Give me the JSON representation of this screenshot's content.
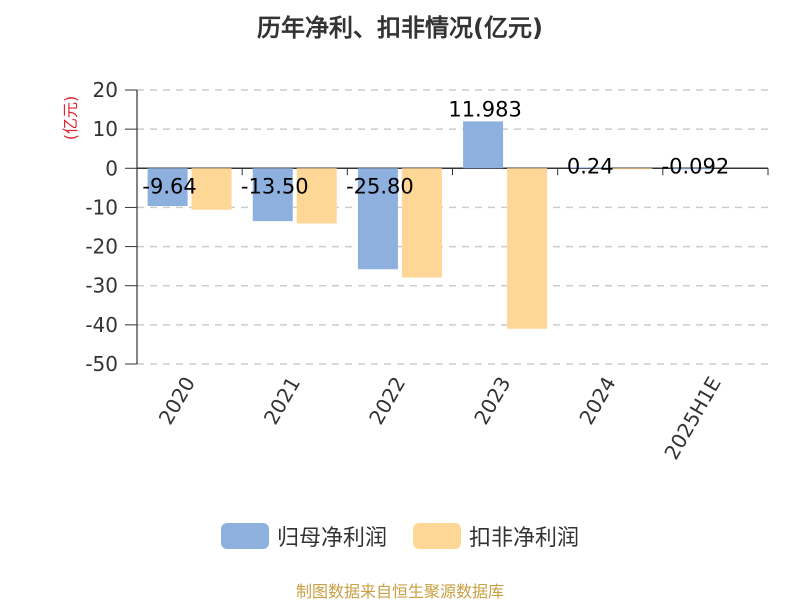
{
  "chart_data": {
    "type": "bar",
    "title": "历年净利、扣非情况(亿元)",
    "ylabel": "(亿元)",
    "categories": [
      "2020",
      "2021",
      "2022",
      "2023",
      "2024",
      "2025H1E"
    ],
    "series": [
      {
        "name": "归母净利润",
        "color": "#8eb0de",
        "values": [
          -9.64,
          -13.5,
          -25.8,
          11.983,
          0.24,
          -0.092
        ],
        "labels": [
          "-9.64",
          "-13.50",
          "-25.80",
          "11.983",
          "0.24",
          "-0.092"
        ]
      },
      {
        "name": "扣非净利润",
        "color": "#fed797",
        "values": [
          -10.6,
          -14.1,
          -27.9,
          -41.0,
          -0.2,
          null
        ],
        "labels": []
      }
    ],
    "ylim": [
      -50,
      20
    ],
    "yticks": [
      20,
      10,
      0,
      -10,
      -20,
      -30,
      -40,
      -50
    ],
    "grid": true,
    "legend_position": "bottom"
  },
  "source": "制图数据来自恒生聚源数据库"
}
